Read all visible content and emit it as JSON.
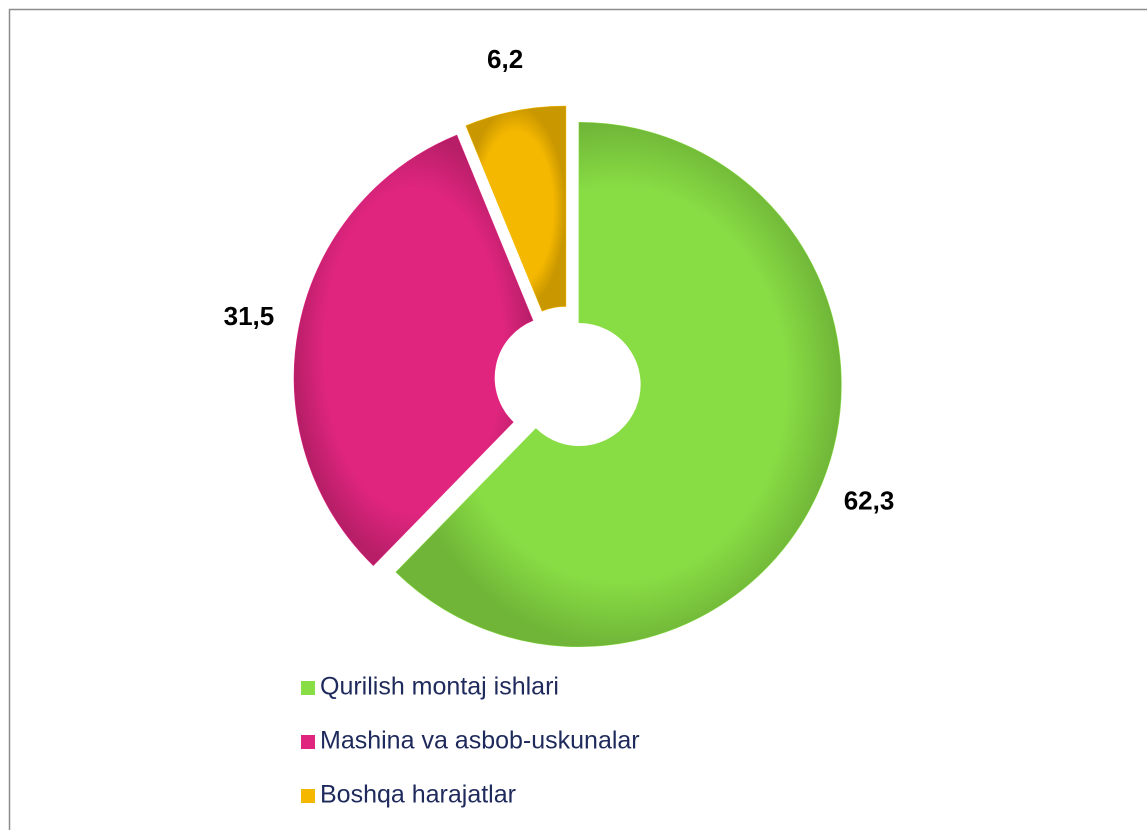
{
  "chart_data": {
    "type": "doughnut",
    "categories": [
      "Qurilish montaj ishlari",
      "Mashina va asbob-uskunalar",
      "Boshqa harajatlar"
    ],
    "values": [
      62.3,
      31.5,
      6.2
    ],
    "value_labels": [
      "62,3",
      "31,5",
      "6,2"
    ],
    "colors": [
      "#88dd44",
      "#e0257f",
      "#f5b800"
    ],
    "legend": "bottom"
  }
}
